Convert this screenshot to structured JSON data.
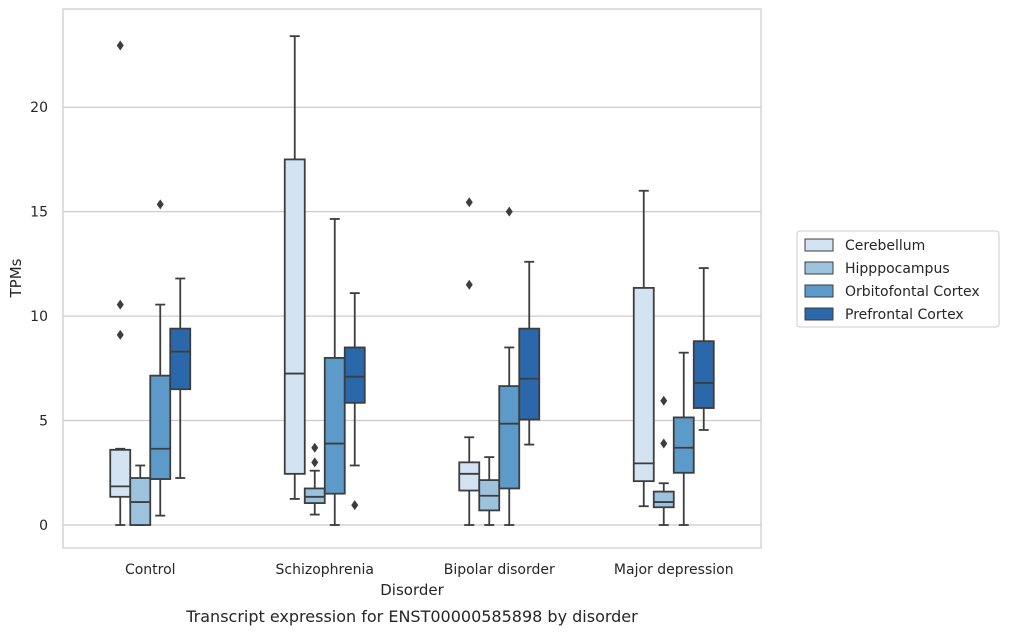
{
  "caption": "Transcript expression for ENST00000585898 by disorder",
  "chart_data": {
    "type": "box",
    "xlabel": "Disorder",
    "ylabel": "TPMs",
    "ylim": [
      -1.1,
      24.7
    ],
    "yticks": [
      0,
      5,
      10,
      15,
      20
    ],
    "grid": "horizontal",
    "legend_position": "right",
    "categories": [
      "Control",
      "Schizophrenia",
      "Bipolar disorder",
      "Major depression"
    ],
    "series": [
      {
        "name": "Cerebellum",
        "color": "#d4e3f2",
        "boxes": [
          {
            "q1": 1.35,
            "median": 1.85,
            "q3": 3.6,
            "whisker_low": 0.0,
            "whisker_high": 3.65,
            "outliers": [
              9.1,
              10.55,
              22.95
            ]
          },
          {
            "q1": 2.45,
            "median": 7.25,
            "q3": 17.5,
            "whisker_low": 1.25,
            "whisker_high": 23.4,
            "outliers": []
          },
          {
            "q1": 1.65,
            "median": 2.45,
            "q3": 3.0,
            "whisker_low": 0.0,
            "whisker_high": 4.2,
            "outliers": [
              11.5,
              15.45
            ]
          },
          {
            "q1": 2.1,
            "median": 2.95,
            "q3": 11.35,
            "whisker_low": 0.9,
            "whisker_high": 16.0,
            "outliers": []
          }
        ]
      },
      {
        "name": "Hipppocampus",
        "color": "#9dc2dd",
        "boxes": [
          {
            "q1": 0.0,
            "median": 1.1,
            "q3": 2.25,
            "whisker_low": 0.0,
            "whisker_high": 2.85,
            "outliers": []
          },
          {
            "q1": 1.05,
            "median": 1.35,
            "q3": 1.75,
            "whisker_low": 0.5,
            "whisker_high": 2.6,
            "outliers": [
              3.0,
              3.7
            ]
          },
          {
            "q1": 0.7,
            "median": 1.4,
            "q3": 2.15,
            "whisker_low": 0.0,
            "whisker_high": 3.25,
            "outliers": []
          },
          {
            "q1": 0.85,
            "median": 1.1,
            "q3": 1.6,
            "whisker_low": 0.0,
            "whisker_high": 2.0,
            "outliers": [
              3.9,
              5.95
            ]
          }
        ]
      },
      {
        "name": "Orbitofontal Cortex",
        "color": "#5b9ac9",
        "boxes": [
          {
            "q1": 2.2,
            "median": 3.65,
            "q3": 7.15,
            "whisker_low": 0.45,
            "whisker_high": 10.55,
            "outliers": [
              15.35
            ]
          },
          {
            "q1": 1.5,
            "median": 3.9,
            "q3": 8.0,
            "whisker_low": 0.0,
            "whisker_high": 14.65,
            "outliers": []
          },
          {
            "q1": 1.75,
            "median": 4.85,
            "q3": 6.65,
            "whisker_low": 0.0,
            "whisker_high": 8.5,
            "outliers": [
              15.0
            ]
          },
          {
            "q1": 2.5,
            "median": 3.7,
            "q3": 5.15,
            "whisker_low": 0.0,
            "whisker_high": 8.25,
            "outliers": []
          }
        ]
      },
      {
        "name": "Prefrontal Cortex",
        "color": "#2a68ab",
        "boxes": [
          {
            "q1": 6.5,
            "median": 8.3,
            "q3": 9.4,
            "whisker_low": 2.25,
            "whisker_high": 11.8,
            "outliers": []
          },
          {
            "q1": 5.85,
            "median": 7.1,
            "q3": 8.5,
            "whisker_low": 2.85,
            "whisker_high": 11.1,
            "outliers": [
              0.95
            ]
          },
          {
            "q1": 5.05,
            "median": 7.0,
            "q3": 9.4,
            "whisker_low": 3.85,
            "whisker_high": 12.6,
            "outliers": []
          },
          {
            "q1": 5.6,
            "median": 6.8,
            "q3": 8.8,
            "whisker_low": 4.55,
            "whisker_high": 12.3,
            "outliers": []
          }
        ]
      }
    ]
  }
}
